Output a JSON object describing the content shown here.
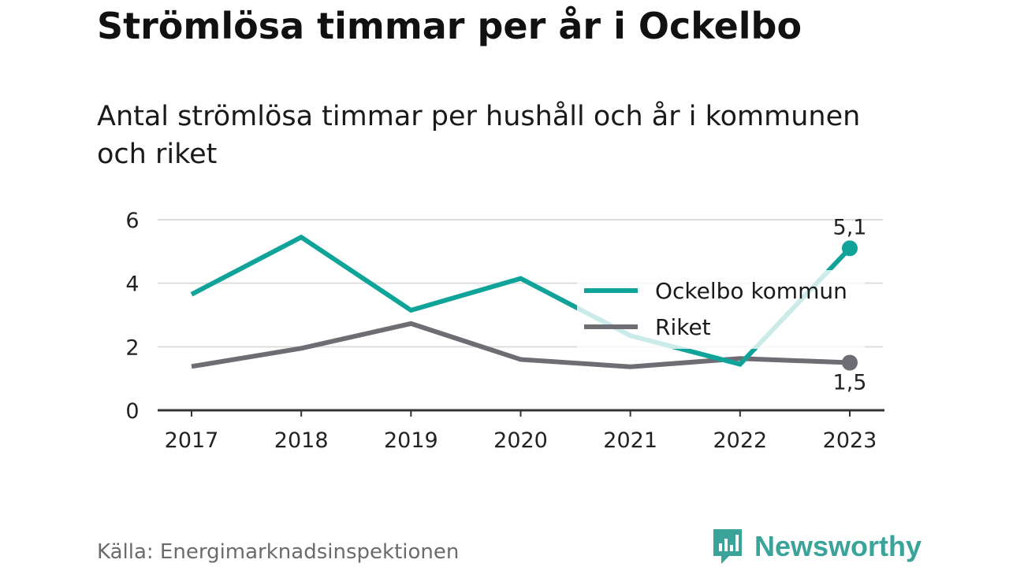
{
  "title": "Strömlösa timmar per år i Ockelbo",
  "subtitle": "Antal strömlösa timmar per hushåll och år i kommunen och riket",
  "source": "Källa: Energimarknadsinspektionen",
  "brand": "Newsworthy",
  "colors": {
    "ockelbo": "#0fa399",
    "riket": "#6e6d73",
    "grid": "#dddddd",
    "axis": "#333333",
    "brand": "#3aa39a"
  },
  "chart_data": {
    "type": "line",
    "x": [
      "2017",
      "2018",
      "2019",
      "2020",
      "2021",
      "2022",
      "2023"
    ],
    "ylim": [
      0,
      6
    ],
    "yticks": [
      0,
      2,
      4,
      6
    ],
    "grid": true,
    "legend_position": "right",
    "series": [
      {
        "name": "Ockelbo kommun",
        "values": [
          3.65,
          5.45,
          3.15,
          4.15,
          2.35,
          1.45,
          5.1
        ],
        "end_label": "5,1"
      },
      {
        "name": "Riket",
        "values": [
          1.38,
          1.95,
          2.73,
          1.6,
          1.37,
          1.63,
          1.5
        ],
        "end_label": "1,5"
      }
    ]
  }
}
